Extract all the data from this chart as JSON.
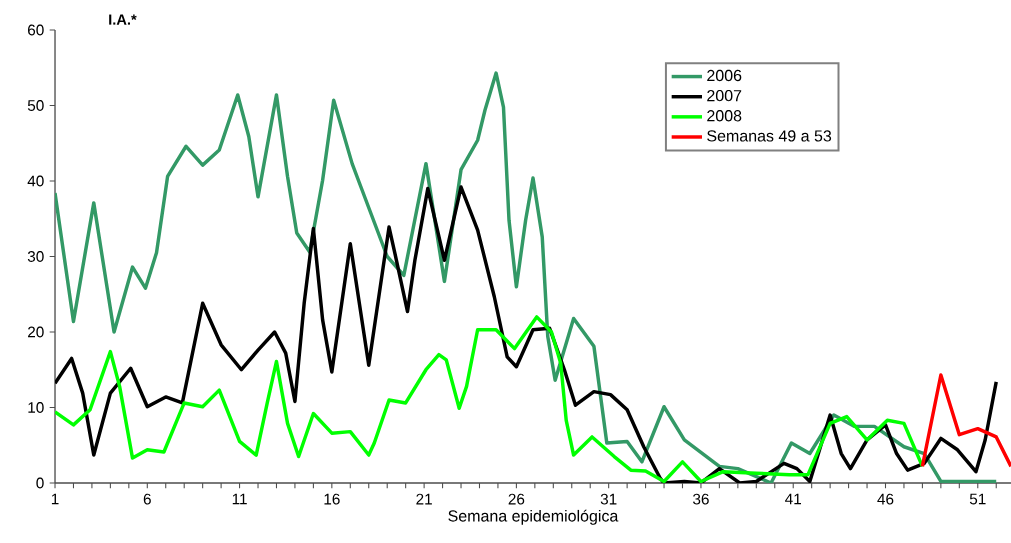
{
  "chart_data": {
    "type": "line",
    "xlabel": "Semana epidemiológica",
    "ylabel": "I.A.*",
    "xlim": [
      1,
      52.8
    ],
    "ylim": [
      0,
      60
    ],
    "xticks": [
      1,
      {
        "value": 2,
        "label": null
      },
      {
        "value": 3,
        "label": null
      },
      {
        "value": 4,
        "label": null
      },
      {
        "value": 5,
        "label": null
      },
      6,
      {
        "value": 7,
        "label": null
      },
      {
        "value": 8,
        "label": null
      },
      {
        "value": 9,
        "label": null
      },
      {
        "value": 10,
        "label": null
      },
      11,
      {
        "value": 12,
        "label": null
      },
      {
        "value": 13,
        "label": null
      },
      {
        "value": 14,
        "label": null
      },
      {
        "value": 15,
        "label": null
      },
      16,
      {
        "value": 17,
        "label": null
      },
      {
        "value": 18,
        "label": null
      },
      {
        "value": 19,
        "label": null
      },
      {
        "value": 20,
        "label": null
      },
      21,
      {
        "value": 22,
        "label": null
      },
      {
        "value": 23,
        "label": null
      },
      {
        "value": 24,
        "label": null
      },
      {
        "value": 25,
        "label": null
      },
      26,
      {
        "value": 27,
        "label": null
      },
      {
        "value": 28,
        "label": null
      },
      {
        "value": 29,
        "label": null
      },
      {
        "value": 30,
        "label": null
      },
      31,
      {
        "value": 32,
        "label": null
      },
      {
        "value": 33,
        "label": null
      },
      {
        "value": 34,
        "label": null
      },
      {
        "value": 35,
        "label": null
      },
      36,
      {
        "value": 37,
        "label": null
      },
      {
        "value": 38,
        "label": null
      },
      {
        "value": 39,
        "label": null
      },
      {
        "value": 40,
        "label": null
      },
      41,
      {
        "value": 42,
        "label": null
      },
      {
        "value": 43,
        "label": null
      },
      {
        "value": 44,
        "label": null
      },
      {
        "value": 45,
        "label": null
      },
      46,
      {
        "value": 47,
        "label": null
      },
      {
        "value": 48,
        "label": null
      },
      {
        "value": 49,
        "label": null
      },
      {
        "value": 50,
        "label": null
      },
      51,
      {
        "value": 52,
        "label": null
      }
    ],
    "yticks": [
      0,
      10,
      20,
      30,
      40,
      50,
      60
    ],
    "legend": "top right",
    "marker": "none",
    "line_style": "solid",
    "series": [
      {
        "name": "2006",
        "color": "#339966",
        "x": [
          1,
          2,
          3.1,
          4.2,
          5.2,
          5.9,
          6.5,
          7.1,
          8.1,
          9,
          9.9,
          10.9,
          11.5,
          12,
          13,
          13.6,
          14.1,
          14.8,
          15.5,
          16.1,
          17.1,
          17.5,
          19,
          19.9,
          21.1,
          22.1,
          23,
          23.9,
          24.3,
          24.9,
          25.3,
          25.6,
          26,
          26.5,
          26.9,
          27.4,
          27.7,
          28.1,
          29.1,
          30.2,
          30.9,
          32,
          32.8,
          34,
          35.1,
          37,
          38,
          39.8,
          40.9,
          41.9,
          43.2,
          44.3,
          45.4,
          47,
          48.1,
          49,
          52
        ],
        "values": [
          38.4,
          21.4,
          37.1,
          20,
          28.6,
          25.8,
          30.5,
          40.6,
          44.6,
          42.1,
          44.1,
          51.4,
          45.9,
          37.9,
          51.4,
          40.6,
          33.1,
          30.6,
          40.1,
          50.7,
          42.3,
          39.7,
          30,
          27.5,
          42.3,
          26.7,
          41.5,
          45.4,
          49.4,
          54.3,
          49.8,
          34.8,
          26,
          34.8,
          40.4,
          32.6,
          19.4,
          13.6,
          21.8,
          18.1,
          5.3,
          5.5,
          2.8,
          10.1,
          5.7,
          2.2,
          1.9,
          0,
          5.3,
          3.9,
          9,
          7.5,
          7.5,
          4.8,
          3.9,
          0.2,
          0.2
        ]
      },
      {
        "name": "2007",
        "color": "#000000",
        "x": [
          1,
          1.9,
          2.5,
          3.1,
          4,
          5.1,
          6,
          7,
          7.9,
          9,
          10,
          11.1,
          12,
          12.9,
          13.5,
          14,
          14.5,
          15,
          15.5,
          16,
          17,
          18,
          19.1,
          19.5,
          20.1,
          20.5,
          21.2,
          22.1,
          23,
          23.9,
          24.8,
          25.5,
          26,
          26.9,
          27.8,
          28.6,
          29.2,
          30.2,
          31.1,
          32,
          32.9,
          33.8,
          34,
          35.1,
          36,
          37,
          38.1,
          39,
          40.5,
          41.2,
          41.9,
          43,
          43.6,
          44.1,
          45,
          46,
          46.6,
          47.2,
          48.1,
          49,
          49.9,
          50.9,
          51.4,
          52
        ],
        "values": [
          13.2,
          16.5,
          11.9,
          3.7,
          11.9,
          15.2,
          10.1,
          11.4,
          10.6,
          23.8,
          18.3,
          15,
          17.6,
          20,
          17.2,
          10.8,
          23.8,
          33.7,
          21.6,
          14.7,
          31.7,
          15.6,
          33.9,
          29.5,
          22.7,
          29.5,
          39,
          29.5,
          39.2,
          33.5,
          24.7,
          16.7,
          15.4,
          20.3,
          20.5,
          15,
          10.3,
          12.1,
          11.7,
          9.7,
          4.8,
          0.6,
          0,
          0.2,
          0,
          1.9,
          0,
          0.2,
          2.6,
          1.9,
          0.2,
          9,
          3.9,
          1.9,
          5.7,
          7.7,
          3.9,
          1.7,
          2.6,
          5.9,
          4.4,
          1.5,
          5.7,
          13.4
        ]
      },
      {
        "name": "2008",
        "color": "#00ff00",
        "x": [
          1,
          2,
          2.9,
          4,
          4.5,
          5.2,
          6,
          6.9,
          8,
          9,
          9.9,
          11,
          11.9,
          12.5,
          13,
          13.6,
          14.2,
          15,
          16,
          17,
          18,
          18.3,
          19.1,
          20,
          21.1,
          21.8,
          22.2,
          22.9,
          23.3,
          23.9,
          24.9,
          25.9,
          27.1,
          27.9,
          28.4,
          28.7,
          29.1,
          30.1,
          31.3,
          32.2,
          33,
          34,
          35,
          36,
          37.2,
          39,
          40.8,
          41.8,
          43,
          43.9,
          45,
          46.1,
          47,
          48
        ],
        "values": [
          9.4,
          7.7,
          9.7,
          17.4,
          12.8,
          3.3,
          4.4,
          4.1,
          10.6,
          10.1,
          12.3,
          5.5,
          3.7,
          10.6,
          16.1,
          7.9,
          3.5,
          9.2,
          6.6,
          6.8,
          3.7,
          5.3,
          11,
          10.6,
          15,
          17,
          16.3,
          9.9,
          12.8,
          20.3,
          20.3,
          17.8,
          22,
          20,
          15.9,
          8.3,
          3.7,
          6.1,
          3.5,
          1.7,
          1.6,
          0.2,
          2.8,
          0.2,
          1.5,
          1.3,
          1.1,
          1.1,
          7.9,
          8.8,
          5.7,
          8.3,
          7.9,
          2.2
        ]
      },
      {
        "name": "Semanas 49 a 53",
        "color": "#ff0000",
        "x": [
          48,
          49,
          50,
          51,
          52,
          52.8
        ],
        "values": [
          2.2,
          14.3,
          6.4,
          7.2,
          6.1,
          2.2
        ]
      }
    ]
  }
}
